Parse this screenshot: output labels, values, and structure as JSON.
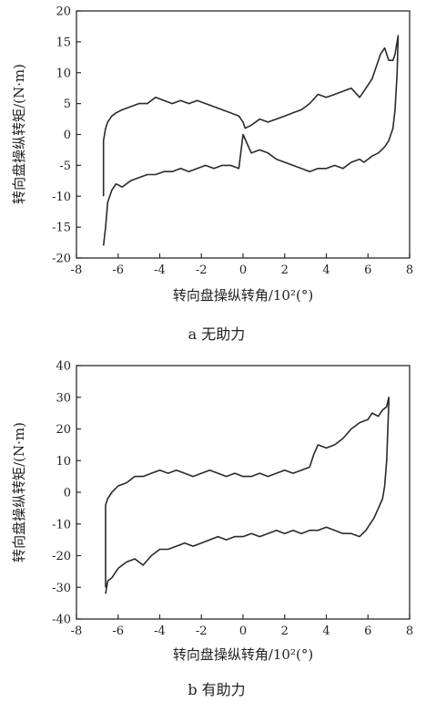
{
  "figure": {
    "background": "#ffffff",
    "line_color": "#2a2a2a"
  },
  "chart_data": [
    {
      "type": "line",
      "caption": "a 无助力",
      "xlabel": "转向盘操纵转角/10²(°)",
      "ylabel": "转向盘操纵转矩/(N·m)",
      "xlim": [
        -8,
        8
      ],
      "ylim": [
        -20,
        20
      ],
      "xticks": [
        -8,
        -6,
        -4,
        -2,
        0,
        2,
        4,
        6,
        8
      ],
      "xtick_labels": [
        "-8",
        "-6",
        "-4",
        "-2",
        "0",
        "2",
        "4",
        "6",
        "8"
      ],
      "yticks": [
        20,
        15,
        10,
        5,
        0,
        -5,
        -10,
        -15,
        -20
      ],
      "ytick_labels": [
        "20",
        "15",
        "10",
        "5",
        "0",
        "-5",
        "-10",
        "-15",
        "-20"
      ],
      "grid": false,
      "series": [
        {
          "x": [
            -6.7,
            -6.6,
            -6.5,
            -6.3,
            -6.1,
            -5.8,
            -5.4,
            -5.0,
            -4.6,
            -4.2,
            -3.8,
            -3.4,
            -3.0,
            -2.6,
            -2.2,
            -1.8,
            -1.4,
            -1.0,
            -0.6,
            -0.2,
            0.0,
            0.4,
            0.8,
            1.2,
            1.6,
            2.0,
            2.4,
            2.8,
            3.2,
            3.6,
            4.0,
            4.4,
            4.8,
            5.2,
            5.6,
            5.8,
            6.0,
            6.2,
            6.5,
            6.8,
            7.0,
            7.2,
            7.3,
            7.4,
            7.45,
            7.4,
            7.35,
            7.3,
            7.2,
            7.0,
            6.8,
            6.6,
            6.4,
            6.2,
            6.0,
            5.6,
            5.2,
            4.8,
            4.4,
            4.0,
            3.6,
            3.2,
            2.8,
            2.4,
            2.0,
            1.6,
            1.2,
            0.8,
            0.4,
            0.1,
            0.0,
            -0.2,
            -0.6,
            -1.0,
            -1.4,
            -1.8,
            -2.2,
            -2.6,
            -3.0,
            -3.4,
            -3.8,
            -4.2,
            -4.6,
            -5.0,
            -5.4,
            -5.8,
            -6.1,
            -6.3,
            -6.5,
            -6.6,
            -6.7,
            -6.7
          ],
          "y": [
            -18,
            -15,
            -11,
            -9,
            -8,
            -8.5,
            -7.5,
            -7,
            -6.5,
            -6.5,
            -6,
            -6,
            -5.5,
            -6,
            -5.5,
            -5,
            -5.5,
            -5,
            -5,
            -5.5,
            0,
            -3,
            -2.5,
            -3,
            -4,
            -4.5,
            -5,
            -5.5,
            -6,
            -5.5,
            -5.5,
            -5,
            -5.5,
            -4.5,
            -4,
            -4.5,
            -4,
            -3.5,
            -3,
            -2,
            -1,
            1,
            4,
            10,
            16,
            15,
            14,
            13,
            12,
            12,
            14,
            13,
            11,
            9,
            8,
            6,
            7.5,
            7,
            6.5,
            6,
            6.5,
            5,
            4,
            3.5,
            3,
            2.5,
            2,
            2.5,
            1.5,
            1,
            2,
            3,
            3.5,
            4,
            4.5,
            5,
            5.5,
            5,
            5.5,
            5,
            5.5,
            6,
            5,
            5,
            4.5,
            4,
            3.5,
            3,
            2,
            1,
            -1,
            -10
          ]
        }
      ]
    },
    {
      "type": "line",
      "caption": "b 有助力",
      "xlabel": "转向盘操纵转角/10²(°)",
      "ylabel": "转向盘操纵转矩/(N·m)",
      "xlim": [
        -8,
        8
      ],
      "ylim": [
        -40,
        40
      ],
      "xticks": [
        -8,
        -6,
        -4,
        -2,
        0,
        2,
        4,
        6,
        8
      ],
      "xtick_labels": [
        "-8",
        "-6",
        "-4",
        "-2",
        "0",
        "2",
        "4",
        "6",
        "8"
      ],
      "yticks": [
        40,
        30,
        20,
        10,
        0,
        -10,
        -20,
        -30,
        -40
      ],
      "ytick_labels": [
        "40",
        "30",
        "20",
        "10",
        "0",
        "-10",
        "-20",
        "-30",
        "-40"
      ],
      "grid": false,
      "series": [
        {
          "x": [
            -6.6,
            -6.5,
            -6.3,
            -6.0,
            -5.6,
            -5.2,
            -4.8,
            -4.4,
            -4.0,
            -3.6,
            -3.2,
            -2.8,
            -2.4,
            -2.0,
            -1.6,
            -1.2,
            -0.8,
            -0.4,
            0.0,
            0.4,
            0.8,
            1.2,
            1.6,
            2.0,
            2.4,
            2.8,
            3.2,
            3.6,
            4.0,
            4.4,
            4.8,
            5.2,
            5.6,
            5.9,
            6.1,
            6.3,
            6.5,
            6.7,
            6.8,
            6.9,
            7.0,
            7.0,
            6.9,
            6.7,
            6.5,
            6.2,
            6.0,
            5.6,
            5.2,
            4.8,
            4.4,
            4.0,
            3.6,
            3.4,
            3.2,
            2.8,
            2.4,
            2.0,
            1.6,
            1.2,
            0.8,
            0.4,
            0.0,
            -0.4,
            -0.8,
            -1.2,
            -1.6,
            -2.0,
            -2.4,
            -2.8,
            -3.2,
            -3.6,
            -4.0,
            -4.4,
            -4.8,
            -5.2,
            -5.6,
            -6.0,
            -6.3,
            -6.5,
            -6.6,
            -6.6
          ],
          "y": [
            -32,
            -28,
            -27,
            -24,
            -22,
            -21,
            -23,
            -20,
            -18,
            -18,
            -17,
            -16,
            -17,
            -16,
            -15,
            -14,
            -15,
            -14,
            -14,
            -13,
            -14,
            -13,
            -12,
            -13,
            -12,
            -13,
            -12,
            -12,
            -11,
            -12,
            -13,
            -13,
            -14,
            -12,
            -10,
            -8,
            -5,
            -2,
            2,
            10,
            28,
            30,
            27,
            26,
            24,
            25,
            23,
            22,
            20,
            17,
            15,
            14,
            15,
            12,
            8,
            7,
            6,
            7,
            6,
            5,
            6,
            5,
            5,
            6,
            5,
            6,
            7,
            6,
            5,
            6,
            7,
            6,
            7,
            6,
            5,
            5,
            3,
            2,
            0,
            -2,
            -4,
            -30
          ]
        }
      ]
    }
  ]
}
